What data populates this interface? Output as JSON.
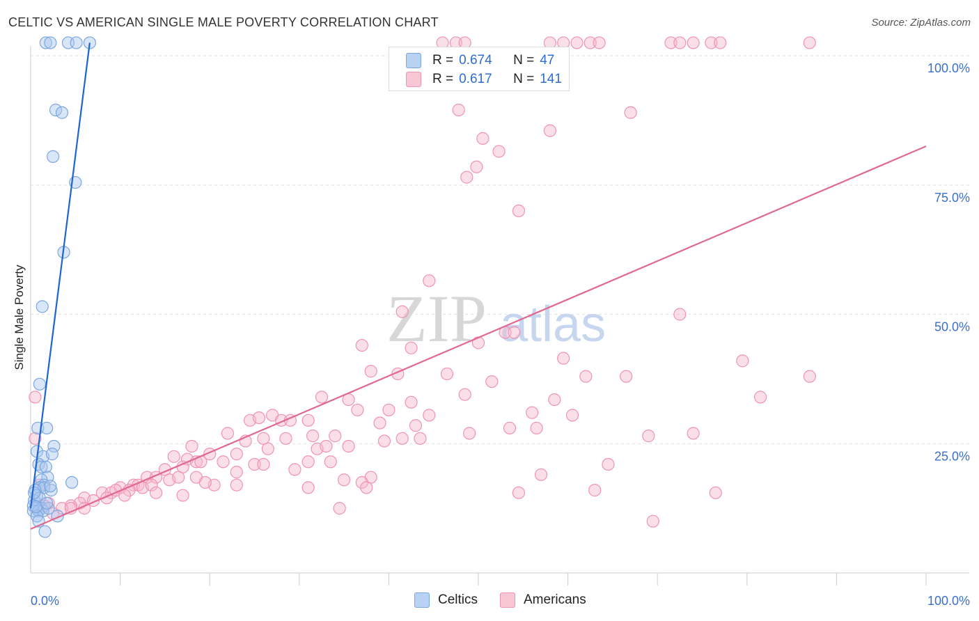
{
  "title": "CELTIC VS AMERICAN SINGLE MALE POVERTY CORRELATION CHART",
  "source": "Source: ZipAtlas.com",
  "watermark": {
    "zip": "ZIP",
    "atlas": "atlas"
  },
  "legend": {
    "celtics": {
      "r_label": "R =",
      "r_value": "0.674",
      "n_label": "N =",
      "n_value": "47"
    },
    "americans": {
      "r_label": "R =",
      "r_value": "0.617",
      "n_label": "N =",
      "n_value": "141"
    }
  },
  "bottom_legend": {
    "celtics": "Celtics",
    "americans": "Americans"
  },
  "colors": {
    "celtics_fill": "#aac7f0",
    "celtics_stroke": "#7aa6e0",
    "celtics_line": "#1f65d0",
    "americans_fill": "#f7b8cb",
    "americans_stroke": "#ef93b1",
    "americans_line": "#e0688f",
    "tick_text": "#3b6fc9",
    "grid": "#e3e3e3"
  },
  "chart_data": {
    "type": "scatter",
    "title": "CELTIC VS AMERICAN SINGLE MALE POVERTY CORRELATION CHART",
    "xlabel": "",
    "ylabel": "Single Male Poverty",
    "xlim": [
      0,
      100
    ],
    "ylim": [
      0,
      100
    ],
    "x_tick_labels": [
      "0.0%",
      "100.0%"
    ],
    "y_ticks": [
      25,
      50,
      75,
      100
    ],
    "y_tick_labels": [
      "25.0%",
      "50.0%",
      "75.0%",
      "100.0%"
    ],
    "grid": true,
    "legend_position": "top-center",
    "series": [
      {
        "name": "Celtics",
        "r": 0.674,
        "n": 47,
        "trend": {
          "x": [
            0.0,
            6.6
          ],
          "y": [
            12.5,
            102.5
          ]
        },
        "points": [
          [
            1.7,
            102.5
          ],
          [
            2.2,
            102.5
          ],
          [
            4.2,
            102.5
          ],
          [
            5.1,
            102.5
          ],
          [
            6.6,
            102.5
          ],
          [
            2.8,
            89.5
          ],
          [
            3.5,
            89.0
          ],
          [
            2.5,
            80.5
          ],
          [
            5.0,
            75.5
          ],
          [
            3.7,
            62.0
          ],
          [
            1.3,
            51.5
          ],
          [
            1.0,
            36.5
          ],
          [
            0.8,
            28.0
          ],
          [
            1.8,
            28.0
          ],
          [
            2.6,
            24.5
          ],
          [
            0.7,
            23.5
          ],
          [
            1.4,
            22.5
          ],
          [
            2.4,
            23.0
          ],
          [
            0.9,
            21.0
          ],
          [
            1.2,
            20.5
          ],
          [
            1.7,
            20.5
          ],
          [
            1.9,
            18.5
          ],
          [
            1.2,
            18.0
          ],
          [
            1.5,
            17.0
          ],
          [
            1.0,
            16.5
          ],
          [
            1.5,
            16.5
          ],
          [
            2.3,
            16.0
          ],
          [
            4.6,
            17.5
          ],
          [
            0.5,
            16.0
          ],
          [
            0.7,
            15.0
          ],
          [
            0.4,
            14.0
          ],
          [
            1.0,
            14.5
          ],
          [
            0.3,
            13.0
          ],
          [
            0.6,
            12.5
          ],
          [
            1.2,
            12.5
          ],
          [
            0.3,
            12.0
          ],
          [
            0.9,
            12.0
          ],
          [
            1.4,
            12.0
          ],
          [
            2.0,
            12.5
          ],
          [
            0.7,
            11.0
          ],
          [
            3.0,
            11.0
          ],
          [
            0.9,
            10.0
          ],
          [
            0.6,
            12.8
          ],
          [
            1.8,
            13.5
          ],
          [
            0.4,
            15.5
          ],
          [
            1.6,
            8.0
          ],
          [
            2.2,
            16.8
          ]
        ]
      },
      {
        "name": "Americans",
        "r": 0.617,
        "n": 141,
        "trend": {
          "x": [
            0.0,
            100.0
          ],
          "y": [
            8.5,
            82.5
          ]
        },
        "points": [
          [
            46.0,
            102.5
          ],
          [
            47.5,
            102.5
          ],
          [
            48.5,
            102.5
          ],
          [
            58.0,
            102.5
          ],
          [
            59.5,
            102.5
          ],
          [
            61.0,
            102.5
          ],
          [
            62.5,
            102.5
          ],
          [
            63.5,
            102.5
          ],
          [
            71.5,
            102.5
          ],
          [
            72.5,
            102.5
          ],
          [
            74.0,
            102.5
          ],
          [
            76.0,
            102.5
          ],
          [
            77.0,
            102.5
          ],
          [
            87.0,
            102.5
          ],
          [
            47.8,
            89.5
          ],
          [
            67.0,
            89.0
          ],
          [
            58.0,
            85.5
          ],
          [
            50.5,
            84.0
          ],
          [
            52.3,
            81.5
          ],
          [
            49.8,
            78.5
          ],
          [
            48.7,
            76.5
          ],
          [
            54.5,
            70.0
          ],
          [
            44.5,
            56.5
          ],
          [
            41.5,
            50.5
          ],
          [
            72.5,
            50.0
          ],
          [
            53.0,
            46.5
          ],
          [
            54.0,
            46.5
          ],
          [
            37.0,
            44.0
          ],
          [
            42.5,
            43.5
          ],
          [
            50.0,
            44.5
          ],
          [
            59.5,
            41.5
          ],
          [
            79.5,
            41.0
          ],
          [
            38.0,
            39.0
          ],
          [
            41.0,
            38.5
          ],
          [
            46.5,
            38.5
          ],
          [
            62.0,
            38.0
          ],
          [
            66.5,
            38.0
          ],
          [
            87.0,
            38.0
          ],
          [
            51.5,
            37.0
          ],
          [
            48.5,
            34.5
          ],
          [
            81.5,
            34.0
          ],
          [
            32.5,
            34.0
          ],
          [
            35.5,
            33.5
          ],
          [
            42.5,
            33.0
          ],
          [
            58.5,
            33.5
          ],
          [
            27.0,
            30.5
          ],
          [
            36.5,
            31.5
          ],
          [
            40.0,
            31.5
          ],
          [
            44.5,
            30.5
          ],
          [
            56.0,
            31.0
          ],
          [
            60.5,
            30.5
          ],
          [
            31.0,
            29.5
          ],
          [
            24.5,
            29.5
          ],
          [
            25.5,
            30.0
          ],
          [
            28.0,
            29.5
          ],
          [
            29.0,
            29.5
          ],
          [
            39.0,
            29.0
          ],
          [
            43.0,
            28.5
          ],
          [
            56.5,
            28.0
          ],
          [
            53.5,
            28.0
          ],
          [
            22.0,
            27.0
          ],
          [
            31.5,
            26.5
          ],
          [
            34.0,
            26.5
          ],
          [
            49.0,
            27.0
          ],
          [
            74.0,
            27.0
          ],
          [
            69.0,
            26.5
          ],
          [
            26.0,
            26.0
          ],
          [
            28.5,
            26.0
          ],
          [
            41.5,
            26.0
          ],
          [
            43.5,
            26.0
          ],
          [
            24.0,
            25.5
          ],
          [
            26.5,
            24.0
          ],
          [
            32.0,
            24.0
          ],
          [
            39.5,
            25.5
          ],
          [
            33.0,
            24.5
          ],
          [
            35.5,
            24.5
          ],
          [
            18.0,
            24.5
          ],
          [
            20.0,
            23.0
          ],
          [
            23.0,
            23.0
          ],
          [
            16.0,
            22.5
          ],
          [
            17.5,
            22.0
          ],
          [
            18.5,
            21.5
          ],
          [
            31.0,
            21.5
          ],
          [
            33.5,
            21.5
          ],
          [
            19.0,
            21.5
          ],
          [
            21.5,
            21.5
          ],
          [
            15.0,
            20.0
          ],
          [
            17.0,
            20.5
          ],
          [
            25.0,
            21.0
          ],
          [
            26.0,
            21.0
          ],
          [
            64.5,
            21.0
          ],
          [
            29.5,
            20.0
          ],
          [
            23.0,
            19.5
          ],
          [
            57.0,
            19.0
          ],
          [
            13.0,
            18.5
          ],
          [
            14.0,
            18.5
          ],
          [
            15.5,
            18.0
          ],
          [
            16.5,
            18.5
          ],
          [
            18.5,
            18.5
          ],
          [
            38.0,
            18.5
          ],
          [
            35.0,
            18.0
          ],
          [
            37.0,
            17.5
          ],
          [
            11.5,
            17.0
          ],
          [
            12.0,
            17.0
          ],
          [
            10.0,
            16.5
          ],
          [
            11.0,
            16.0
          ],
          [
            12.5,
            16.5
          ],
          [
            13.5,
            17.0
          ],
          [
            20.5,
            17.0
          ],
          [
            23.0,
            17.0
          ],
          [
            37.5,
            16.5
          ],
          [
            31.0,
            16.5
          ],
          [
            8.0,
            15.5
          ],
          [
            9.0,
            15.5
          ],
          [
            9.5,
            16.0
          ],
          [
            10.5,
            15.0
          ],
          [
            14.0,
            15.5
          ],
          [
            19.5,
            17.5
          ],
          [
            17.0,
            15.0
          ],
          [
            6.0,
            14.5
          ],
          [
            7.0,
            14.0
          ],
          [
            8.5,
            14.5
          ],
          [
            5.5,
            13.5
          ],
          [
            4.5,
            13.0
          ],
          [
            2.0,
            13.5
          ],
          [
            3.5,
            12.5
          ],
          [
            4.5,
            12.5
          ],
          [
            1.0,
            17.0
          ],
          [
            0.5,
            26.0
          ],
          [
            0.5,
            34.0
          ],
          [
            1.5,
            13.0
          ],
          [
            2.5,
            11.5
          ],
          [
            54.5,
            15.5
          ],
          [
            63.0,
            16.0
          ],
          [
            34.5,
            12.5
          ],
          [
            6.0,
            12.5
          ],
          [
            69.5,
            10.0
          ],
          [
            76.5,
            15.5
          ]
        ]
      }
    ]
  }
}
